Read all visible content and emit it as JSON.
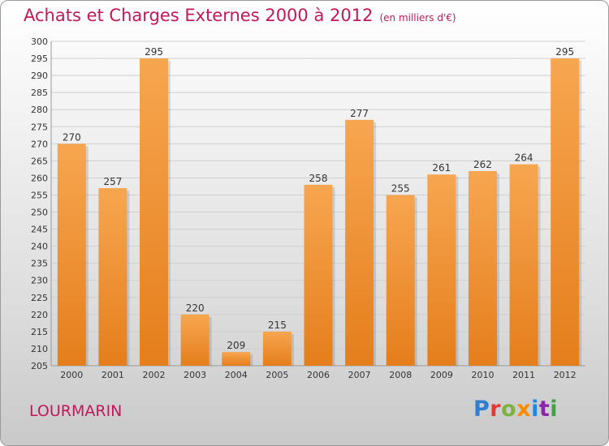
{
  "header": {
    "title": "Achats et Charges Externes 2000 à 2012",
    "subtitle": "(en milliers d'€)"
  },
  "footer": {
    "city": "LOURMARIN",
    "brand": "Proxiti"
  },
  "colors": {
    "title": "#c2185b",
    "bar_light": "#f7a650",
    "bar_dark": "#e57e1c",
    "grid": "#cfcfcf",
    "axis_text": "#333333"
  },
  "chart_data": {
    "type": "bar",
    "title": "Achats et Charges Externes 2000 à 2012",
    "subtitle": "(en milliers d'€)",
    "categories": [
      "2000",
      "2001",
      "2002",
      "2003",
      "2004",
      "2005",
      "2006",
      "2007",
      "2008",
      "2009",
      "2010",
      "2011",
      "2012"
    ],
    "values": [
      270,
      257,
      295,
      220,
      209,
      215,
      258,
      277,
      255,
      261,
      262,
      264,
      295
    ],
    "data_labels": [
      "270",
      "257",
      "295",
      "220",
      "209",
      "215",
      "258",
      "277",
      "255",
      "261",
      "262",
      "264",
      "295"
    ],
    "xlabel": "",
    "ylabel": "",
    "ylim": [
      205,
      300
    ],
    "yticks": [
      205,
      210,
      215,
      220,
      225,
      230,
      235,
      240,
      245,
      250,
      255,
      260,
      265,
      270,
      275,
      280,
      285,
      290,
      295,
      300
    ],
    "grid": true,
    "legend": "none"
  }
}
